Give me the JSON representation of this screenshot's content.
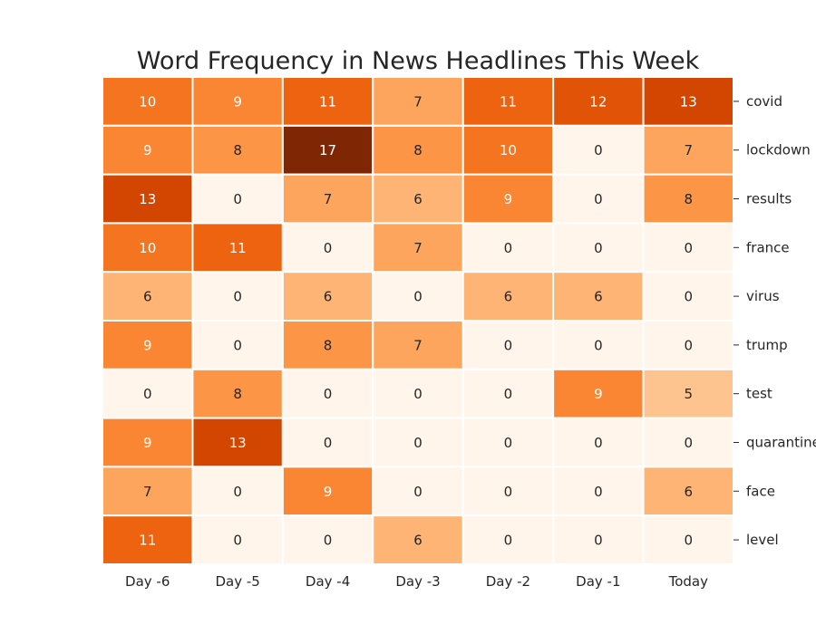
{
  "chart_data": {
    "type": "heatmap",
    "title": "Word Frequency in News Headlines This Week",
    "columns": [
      "Day -6",
      "Day -5",
      "Day -4",
      "Day -3",
      "Day -2",
      "Day -1",
      "Today"
    ],
    "rows": [
      "covid",
      "lockdown",
      "results",
      "france",
      "virus",
      "trump",
      "test",
      "quarantine",
      "face",
      "level"
    ],
    "values": [
      [
        10,
        9,
        11,
        7,
        11,
        12,
        13
      ],
      [
        9,
        8,
        17,
        8,
        10,
        0,
        7
      ],
      [
        13,
        0,
        7,
        6,
        9,
        0,
        8
      ],
      [
        10,
        11,
        0,
        7,
        0,
        0,
        0
      ],
      [
        6,
        0,
        6,
        0,
        6,
        6,
        0
      ],
      [
        9,
        0,
        8,
        7,
        0,
        0,
        0
      ],
      [
        0,
        8,
        0,
        0,
        0,
        9,
        5
      ],
      [
        9,
        13,
        0,
        0,
        0,
        0,
        0
      ],
      [
        7,
        0,
        9,
        0,
        0,
        0,
        6
      ],
      [
        11,
        0,
        0,
        6,
        0,
        0,
        0
      ]
    ],
    "value_range": [
      0,
      17
    ],
    "colormap": "Oranges",
    "annotations": true,
    "row_labels_side": "right",
    "colorbar": false
  }
}
